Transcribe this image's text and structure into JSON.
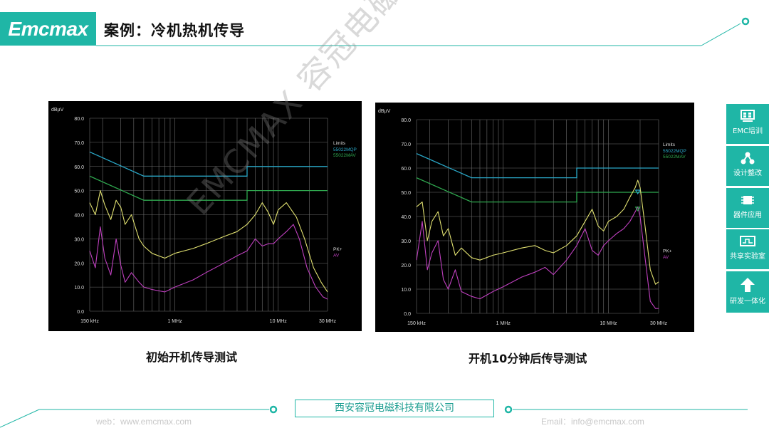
{
  "header": {
    "logo_text": "Emcmax",
    "title": "案例：冷机热机传导"
  },
  "watermark": "EMCMAX 容冠电磁",
  "sidebar": [
    {
      "label": "EMC培训",
      "icon": "grid-board-icon"
    },
    {
      "label": "设计整改",
      "icon": "network-nodes-icon"
    },
    {
      "label": "器件应用",
      "icon": "chip-icon"
    },
    {
      "label": "共享实验室",
      "icon": "lab-waveform-icon"
    },
    {
      "label": "研发一体化",
      "icon": "arrow-up-icon"
    }
  ],
  "footer": {
    "company": "西安容冠电磁科技有限公司",
    "web": "web：www.emcmax.com",
    "email": "Email：info@emcmax.com"
  },
  "colors": {
    "accent": "#1fb6a6",
    "qp_limit": "#2aa8c8",
    "av_limit": "#2fa84f",
    "pk_trace": "#e0e070",
    "av_trace": "#c040c0"
  },
  "chart_data": [
    {
      "type": "line",
      "caption": "初始开机传导测试",
      "ylabel": "dBµV",
      "ylim": [
        0,
        80
      ],
      "yticks": [
        "80.0",
        "70.0",
        "60.0",
        "50.0",
        "40.0",
        "30.0",
        "20.0",
        "10.0",
        "0.0"
      ],
      "x_scale": "log",
      "xlim_mhz": [
        0.15,
        30
      ],
      "xtick_labels": [
        {
          "mhz": 0.15,
          "label": "150 kHz"
        },
        {
          "mhz": 1,
          "label": "1 MHz"
        },
        {
          "mhz": 10,
          "label": "10 MHz"
        },
        {
          "mhz": 30,
          "label": "30 MHz"
        }
      ],
      "legend_title": "Limits",
      "legend": [
        "55022MQP",
        "55022MAV"
      ],
      "trace_legend": [
        "PK+",
        "AV"
      ],
      "limits": [
        {
          "name": "55022MQP",
          "points": [
            [
              0.15,
              66
            ],
            [
              0.5,
              56
            ],
            [
              5,
              56
            ],
            [
              5,
              60
            ],
            [
              30,
              60
            ]
          ]
        },
        {
          "name": "55022MAV",
          "points": [
            [
              0.15,
              56
            ],
            [
              0.5,
              46
            ],
            [
              5,
              46
            ],
            [
              5,
              50
            ],
            [
              30,
              50
            ]
          ]
        }
      ],
      "series": [
        {
          "name": "PK+",
          "points": [
            [
              0.15,
              45
            ],
            [
              0.17,
              40
            ],
            [
              0.19,
              50
            ],
            [
              0.21,
              44
            ],
            [
              0.24,
              38
            ],
            [
              0.27,
              46
            ],
            [
              0.3,
              43
            ],
            [
              0.33,
              36
            ],
            [
              0.38,
              40
            ],
            [
              0.45,
              30
            ],
            [
              0.5,
              27
            ],
            [
              0.6,
              24
            ],
            [
              0.8,
              22
            ],
            [
              1,
              24
            ],
            [
              1.5,
              26
            ],
            [
              2,
              28
            ],
            [
              3,
              31
            ],
            [
              4,
              33
            ],
            [
              5,
              36
            ],
            [
              6,
              40
            ],
            [
              7,
              45
            ],
            [
              8,
              41
            ],
            [
              9,
              36
            ],
            [
              10,
              42
            ],
            [
              12,
              45
            ],
            [
              15,
              39
            ],
            [
              18,
              30
            ],
            [
              22,
              18
            ],
            [
              26,
              12
            ],
            [
              30,
              8
            ]
          ]
        },
        {
          "name": "AV",
          "points": [
            [
              0.15,
              25
            ],
            [
              0.17,
              18
            ],
            [
              0.19,
              35
            ],
            [
              0.21,
              22
            ],
            [
              0.24,
              15
            ],
            [
              0.27,
              30
            ],
            [
              0.3,
              19
            ],
            [
              0.33,
              12
            ],
            [
              0.38,
              16
            ],
            [
              0.45,
              12
            ],
            [
              0.5,
              10
            ],
            [
              0.6,
              9
            ],
            [
              0.8,
              8
            ],
            [
              1,
              10
            ],
            [
              1.5,
              13
            ],
            [
              2,
              16
            ],
            [
              3,
              20
            ],
            [
              4,
              23
            ],
            [
              5,
              25
            ],
            [
              6,
              30
            ],
            [
              7,
              27
            ],
            [
              8,
              28
            ],
            [
              9,
              28
            ],
            [
              10,
              30
            ],
            [
              12,
              33
            ],
            [
              14,
              36
            ],
            [
              16,
              30
            ],
            [
              19,
              18
            ],
            [
              23,
              10
            ],
            [
              27,
              6
            ],
            [
              30,
              5
            ]
          ]
        }
      ]
    },
    {
      "type": "line",
      "caption": "开机10分钟后传导测试",
      "ylabel": "dBµV",
      "ylim": [
        0,
        80
      ],
      "yticks": [
        "80.0",
        "70.0",
        "60.0",
        "50.0",
        "40.0",
        "30.0",
        "20.0",
        "10.0",
        "0.0"
      ],
      "x_scale": "log",
      "xlim_mhz": [
        0.15,
        30
      ],
      "xtick_labels": [
        {
          "mhz": 0.15,
          "label": "150 kHz"
        },
        {
          "mhz": 1,
          "label": "1 MHz"
        },
        {
          "mhz": 10,
          "label": "10 MHz"
        },
        {
          "mhz": 30,
          "label": "30 MHz"
        }
      ],
      "legend_title": "Limits",
      "legend": [
        "55022MQP",
        "55022MAV"
      ],
      "trace_legend": [
        "PK+",
        "AV"
      ],
      "markers": [
        {
          "mhz": 19,
          "value": 50
        },
        {
          "mhz": 19,
          "value": 43
        }
      ],
      "limits": [
        {
          "name": "55022MQP",
          "points": [
            [
              0.15,
              66
            ],
            [
              0.5,
              56
            ],
            [
              5,
              56
            ],
            [
              5,
              60
            ],
            [
              30,
              60
            ]
          ]
        },
        {
          "name": "55022MAV",
          "points": [
            [
              0.15,
              56
            ],
            [
              0.5,
              46
            ],
            [
              5,
              46
            ],
            [
              5,
              50
            ],
            [
              30,
              50
            ]
          ]
        }
      ],
      "series": [
        {
          "name": "PK+",
          "points": [
            [
              0.15,
              44
            ],
            [
              0.17,
              46
            ],
            [
              0.19,
              30
            ],
            [
              0.21,
              38
            ],
            [
              0.24,
              42
            ],
            [
              0.27,
              32
            ],
            [
              0.3,
              35
            ],
            [
              0.35,
              24
            ],
            [
              0.4,
              27
            ],
            [
              0.5,
              23
            ],
            [
              0.6,
              22
            ],
            [
              0.8,
              24
            ],
            [
              1,
              25
            ],
            [
              1.5,
              27
            ],
            [
              2,
              28
            ],
            [
              2.5,
              26
            ],
            [
              3,
              25
            ],
            [
              4,
              28
            ],
            [
              5,
              32
            ],
            [
              6,
              38
            ],
            [
              7,
              43
            ],
            [
              8,
              36
            ],
            [
              9,
              34
            ],
            [
              10,
              38
            ],
            [
              12,
              40
            ],
            [
              14,
              43
            ],
            [
              16,
              48
            ],
            [
              18,
              52
            ],
            [
              19,
              55
            ],
            [
              20,
              52
            ],
            [
              22,
              38
            ],
            [
              25,
              18
            ],
            [
              28,
              12
            ],
            [
              30,
              13
            ]
          ]
        },
        {
          "name": "AV",
          "points": [
            [
              0.15,
              22
            ],
            [
              0.17,
              38
            ],
            [
              0.19,
              18
            ],
            [
              0.21,
              25
            ],
            [
              0.24,
              30
            ],
            [
              0.27,
              14
            ],
            [
              0.3,
              10
            ],
            [
              0.35,
              18
            ],
            [
              0.4,
              9
            ],
            [
              0.5,
              7
            ],
            [
              0.6,
              6
            ],
            [
              0.8,
              9
            ],
            [
              1,
              11
            ],
            [
              1.5,
              15
            ],
            [
              2,
              17
            ],
            [
              2.5,
              19
            ],
            [
              3,
              16
            ],
            [
              4,
              22
            ],
            [
              5,
              28
            ],
            [
              6,
              35
            ],
            [
              7,
              26
            ],
            [
              8,
              24
            ],
            [
              9,
              28
            ],
            [
              10,
              30
            ],
            [
              12,
              33
            ],
            [
              14,
              35
            ],
            [
              16,
              38
            ],
            [
              18,
              42
            ],
            [
              19,
              44
            ],
            [
              20,
              40
            ],
            [
              22,
              25
            ],
            [
              25,
              5
            ],
            [
              28,
              2
            ],
            [
              30,
              2
            ]
          ]
        }
      ]
    }
  ]
}
